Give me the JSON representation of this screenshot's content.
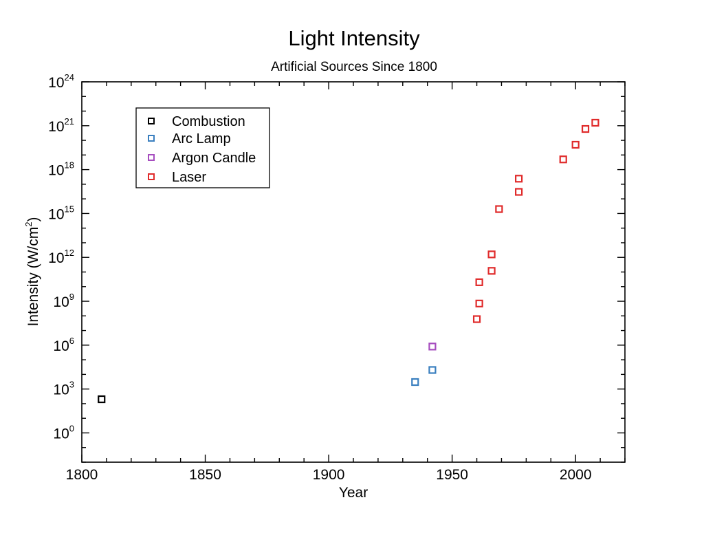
{
  "chart_data": {
    "type": "scatter",
    "title": "Light Intensity",
    "subtitle": "Artificial Sources Since 1800",
    "xlabel": "Year",
    "ylabel": "Intensity (W/cm2)",
    "ylabel_base": "Intensity (W/cm",
    "ylabel_exp": "2",
    "ylabel_close": ")",
    "xlim": [
      1800,
      2020
    ],
    "ylim_exponent": [
      -2,
      24
    ],
    "yscale": "log",
    "grid": false,
    "marker": "open-square",
    "legend_placement": "top-left",
    "x_ticks": [
      1800,
      1850,
      1900,
      1950,
      2000
    ],
    "x_tick_labels": [
      "1800",
      "1850",
      "1900",
      "1950",
      "2000"
    ],
    "y_ticks_exponent": [
      0,
      3,
      6,
      9,
      12,
      15,
      18,
      21,
      24
    ],
    "y_tick_base": "10",
    "y_tick_exp_labels": [
      "0",
      "3",
      "6",
      "9",
      "12",
      "15",
      "18",
      "21",
      "24"
    ],
    "series": [
      {
        "name": "Combustion",
        "color": "#000000",
        "points": [
          {
            "x": 1808,
            "y": 200
          }
        ]
      },
      {
        "name": "Arc Lamp",
        "color": "#3a7fbf",
        "points": [
          {
            "x": 1935,
            "y": 3000
          },
          {
            "x": 1942,
            "y": 20000
          }
        ]
      },
      {
        "name": "Argon Candle",
        "color": "#a64dbf",
        "points": [
          {
            "x": 1942,
            "y": 800000
          }
        ]
      },
      {
        "name": "Laser",
        "color": "#e02b2b",
        "points": [
          {
            "x": 1960,
            "y": 60000000
          },
          {
            "x": 1961,
            "y": 700000000
          },
          {
            "x": 1961,
            "y": 20000000000
          },
          {
            "x": 1966,
            "y": 120000000000
          },
          {
            "x": 1966,
            "y": 1600000000000
          },
          {
            "x": 1969,
            "y": 2000000000000000
          },
          {
            "x": 1977,
            "y": 30000000000000000
          },
          {
            "x": 1977,
            "y": 240000000000000000
          },
          {
            "x": 1995,
            "y": 5000000000000000000
          },
          {
            "x": 2000,
            "y": 50000000000000000000
          },
          {
            "x": 2004,
            "y": 600000000000000000000
          },
          {
            "x": 2008,
            "y": 1600000000000000000000
          }
        ]
      }
    ]
  }
}
